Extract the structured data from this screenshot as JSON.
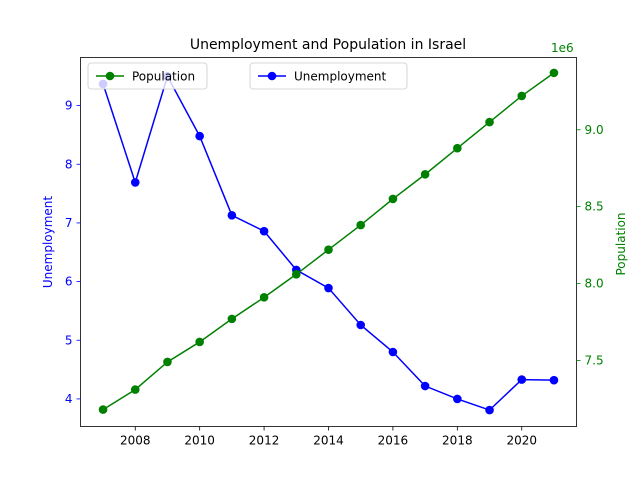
{
  "chart_data": {
    "type": "line",
    "title": "Unemployment and Population in Israel",
    "xlabel": "",
    "x": [
      2007,
      2008,
      2009,
      2010,
      2011,
      2012,
      2013,
      2014,
      2015,
      2016,
      2017,
      2018,
      2019,
      2020,
      2021
    ],
    "xlim": [
      2006.3,
      2021.7
    ],
    "x_ticks": [
      2008,
      2010,
      2012,
      2014,
      2016,
      2018,
      2020
    ],
    "grid": false,
    "left_axis": {
      "label": "Unemployment",
      "color": "#0000ff",
      "ylim": [
        3.53,
        9.82
      ],
      "ticks": [
        4,
        5,
        6,
        7,
        8,
        9
      ]
    },
    "right_axis": {
      "label": "Population",
      "color": "#008000",
      "offset_text": "1e6",
      "ylim": [
        7.07,
        9.47
      ],
      "ticks": [
        7.5,
        8.0,
        8.5,
        9.0
      ]
    },
    "series": [
      {
        "name": "Unemployment",
        "axis": "left",
        "color": "#0000ff",
        "marker": "circle",
        "values": [
          9.37,
          7.69,
          9.5,
          8.48,
          7.13,
          6.86,
          6.2,
          5.89,
          5.26,
          4.8,
          4.22,
          4.0,
          3.81,
          4.33,
          4.32
        ]
      },
      {
        "name": "Population",
        "axis": "right",
        "color": "#008000",
        "marker": "circle",
        "values": [
          7.18,
          7.31,
          7.49,
          7.62,
          7.77,
          7.91,
          8.06,
          8.22,
          8.38,
          8.55,
          8.71,
          8.88,
          9.05,
          9.22,
          9.37
        ]
      }
    ],
    "legends": [
      {
        "placement": "upper-left",
        "entries": [
          "Population"
        ]
      },
      {
        "placement": "upper-center",
        "entries": [
          "Unemployment"
        ]
      }
    ]
  }
}
